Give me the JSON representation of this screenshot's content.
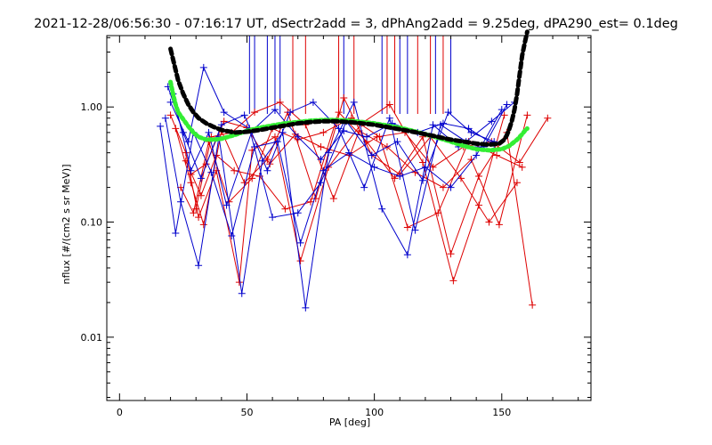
{
  "chart_data": {
    "type": "line",
    "title": "2021-12-28/06:56:30 - 07:16:17 UT, dSectr2add = 3, dPhAng2add = 9.25deg, dPA290_est=    0.1deg",
    "xlabel": "PA [deg]",
    "ylabel": "nflux [#/(cm2 s sr MeV)]",
    "xlim": [
      -5,
      185
    ],
    "ylim_log10": [
      -2.55,
      0.62
    ],
    "yscale": "log",
    "x_ticks": [
      0,
      50,
      100,
      150
    ],
    "x_tick_labels": [
      "0",
      "50",
      "100",
      "150"
    ],
    "y_ticks": [
      0.01,
      0.1,
      1.0
    ],
    "y_tick_labels": [
      "0.01",
      "0.10",
      "1.00"
    ],
    "colors": {
      "red": "#dd0000",
      "blue": "#0000cc",
      "green": "#33ee33",
      "black": "#000000"
    },
    "vertical_markers": {
      "red": [
        68,
        73,
        86,
        92,
        105,
        108,
        117,
        122,
        127
      ],
      "blue": [
        51,
        53,
        58,
        61,
        63,
        88,
        103,
        110,
        113,
        124,
        130
      ]
    },
    "series": [
      {
        "color": "red",
        "x": [
          20,
          26,
          31,
          38,
          47,
          52,
          61,
          71,
          82,
          95,
          106,
          119,
          131,
          141,
          151
        ],
        "y": [
          0.85,
          0.4,
          0.11,
          0.28,
          0.03,
          0.42,
          0.55,
          0.046,
          0.3,
          0.72,
          1.05,
          0.33,
          0.031,
          0.14,
          0.85
        ]
      },
      {
        "color": "red",
        "x": [
          22,
          28,
          33,
          40,
          49,
          58,
          66,
          77,
          88,
          99,
          110,
          122,
          134,
          145,
          156
        ],
        "y": [
          0.65,
          0.22,
          0.095,
          0.62,
          0.22,
          0.35,
          0.9,
          0.16,
          1.2,
          0.38,
          0.26,
          0.55,
          0.24,
          0.1,
          0.22
        ]
      },
      {
        "color": "red",
        "x": [
          24,
          29,
          35,
          43,
          52,
          60,
          70,
          80,
          91,
          102,
          113,
          125,
          137,
          148,
          158
        ],
        "y": [
          0.2,
          0.12,
          0.5,
          0.15,
          0.24,
          0.65,
          0.52,
          0.6,
          0.8,
          0.55,
          0.09,
          0.12,
          0.5,
          0.38,
          0.3
        ]
      },
      {
        "color": "red",
        "x": [
          26,
          32,
          38,
          45,
          55,
          65,
          75,
          86,
          97,
          108,
          119,
          130,
          141,
          152,
          162
        ],
        "y": [
          0.34,
          0.17,
          0.38,
          0.28,
          0.25,
          0.13,
          0.15,
          0.9,
          0.5,
          0.24,
          0.55,
          0.053,
          0.25,
          0.6,
          0.019
        ]
      },
      {
        "color": "red",
        "x": [
          28,
          34,
          41,
          50,
          59,
          69,
          79,
          90,
          101,
          112,
          123,
          135,
          146,
          157,
          168
        ],
        "y": [
          0.26,
          0.32,
          0.75,
          0.66,
          0.32,
          0.58,
          0.45,
          0.38,
          0.55,
          0.6,
          0.3,
          0.45,
          0.5,
          0.33,
          0.8
        ]
      },
      {
        "color": "red",
        "x": [
          30,
          36,
          44,
          53,
          63,
          73,
          84,
          94,
          105,
          116,
          127,
          138,
          149,
          160
        ],
        "y": [
          0.13,
          0.55,
          0.6,
          0.9,
          1.1,
          0.7,
          0.16,
          0.62,
          0.45,
          0.27,
          0.2,
          0.35,
          0.095,
          0.85
        ]
      },
      {
        "color": "blue",
        "x": [
          18,
          24,
          31,
          39,
          48,
          56,
          64,
          73,
          82,
          92,
          103,
          113,
          123,
          133,
          143,
          152
        ],
        "y": [
          0.8,
          0.15,
          0.042,
          0.55,
          0.024,
          0.34,
          0.6,
          0.018,
          0.4,
          1.1,
          0.13,
          0.052,
          0.7,
          0.45,
          0.45,
          1.05
        ]
      },
      {
        "color": "blue",
        "x": [
          20,
          27,
          33,
          41,
          51,
          60,
          70,
          79,
          89,
          99,
          109,
          119,
          129,
          138,
          147
        ],
        "y": [
          1.1,
          0.5,
          2.2,
          0.9,
          0.65,
          0.11,
          0.12,
          0.22,
          0.75,
          0.38,
          0.5,
          0.23,
          0.9,
          0.6,
          0.5
        ]
      },
      {
        "color": "blue",
        "x": [
          16,
          22,
          29,
          36,
          44,
          53,
          62,
          71,
          80,
          90,
          100,
          110,
          120,
          130,
          140,
          150
        ],
        "y": [
          0.68,
          0.08,
          0.6,
          0.27,
          0.076,
          0.45,
          0.5,
          0.066,
          0.28,
          0.4,
          0.3,
          0.25,
          0.3,
          0.2,
          0.38,
          0.95
        ]
      },
      {
        "color": "blue",
        "x": [
          19,
          25,
          32,
          40,
          49,
          58,
          67,
          76,
          86,
          96,
          106,
          116,
          126,
          136,
          146,
          155
        ],
        "y": [
          1.5,
          0.6,
          0.24,
          0.7,
          0.85,
          0.28,
          0.9,
          1.1,
          0.65,
          0.2,
          0.8,
          0.085,
          0.7,
          0.5,
          0.75,
          1.1
        ]
      },
      {
        "color": "blue",
        "x": [
          21,
          28,
          35,
          42,
          52,
          61,
          70,
          79,
          88,
          97,
          107,
          117,
          127,
          137,
          147
        ],
        "y": [
          1.3,
          0.28,
          0.6,
          0.14,
          0.62,
          0.95,
          0.55,
          0.35,
          0.62,
          0.55,
          0.72,
          0.6,
          0.72,
          0.65,
          0.47
        ]
      }
    ],
    "fits": [
      {
        "name": "",
        "color": "green",
        "style": "dotted-thick",
        "x": [
          20,
          21,
          22,
          23,
          25,
          27,
          29,
          31,
          34,
          37,
          40,
          45,
          50,
          55,
          60,
          65,
          70,
          75,
          80,
          85,
          90,
          95,
          100,
          105,
          110,
          115,
          120,
          125,
          130,
          135,
          140,
          145,
          150,
          153,
          156,
          158,
          159,
          160
        ],
        "y": [
          1.65,
          1.3,
          1.05,
          0.9,
          0.78,
          0.68,
          0.6,
          0.55,
          0.52,
          0.52,
          0.53,
          0.57,
          0.62,
          0.66,
          0.69,
          0.72,
          0.74,
          0.76,
          0.77,
          0.77,
          0.76,
          0.74,
          0.72,
          0.69,
          0.66,
          0.62,
          0.58,
          0.54,
          0.5,
          0.46,
          0.43,
          0.42,
          0.43,
          0.46,
          0.52,
          0.58,
          0.62,
          0.65
        ]
      },
      {
        "name": "",
        "color": "black",
        "style": "dashed-thick",
        "x": [
          20,
          21,
          22,
          23,
          25,
          27,
          29,
          31,
          34,
          37,
          40,
          45,
          50,
          55,
          60,
          65,
          70,
          75,
          80,
          85,
          90,
          95,
          100,
          105,
          110,
          115,
          120,
          125,
          130,
          135,
          140,
          145,
          149,
          151,
          152,
          153,
          154,
          155,
          156,
          157,
          158,
          159,
          160
        ],
        "y": [
          3.2,
          2.6,
          2.1,
          1.7,
          1.3,
          1.05,
          0.9,
          0.8,
          0.72,
          0.67,
          0.63,
          0.6,
          0.61,
          0.63,
          0.66,
          0.69,
          0.72,
          0.74,
          0.75,
          0.75,
          0.74,
          0.72,
          0.7,
          0.67,
          0.64,
          0.61,
          0.58,
          0.55,
          0.52,
          0.5,
          0.48,
          0.47,
          0.48,
          0.52,
          0.57,
          0.65,
          0.76,
          0.95,
          1.3,
          1.9,
          2.8,
          3.6,
          4.5
        ]
      }
    ]
  }
}
